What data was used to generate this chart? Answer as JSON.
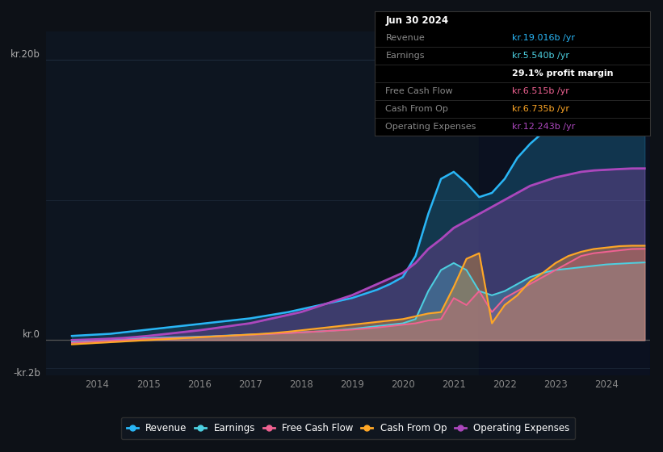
{
  "background_color": "#0d1117",
  "plot_bg_color": "#0d1520",
  "ylim": [
    -2.5,
    22.0
  ],
  "xlim": [
    2013.0,
    2024.85
  ],
  "x_ticks": [
    2014,
    2015,
    2016,
    2017,
    2018,
    2019,
    2020,
    2021,
    2022,
    2023,
    2024
  ],
  "y_label_top": "kr.20b",
  "y_label_zero": "kr.0",
  "y_label_neg": "-kr.2b",
  "revenue_color": "#29b6f6",
  "earnings_color": "#4dd0e1",
  "fcf_color": "#f06292",
  "cashop_color": "#ffa726",
  "opex_color": "#ab47bc",
  "grid_color": "#1e2a3a",
  "zero_line_color": "#555555",
  "legend_items": [
    {
      "label": "Revenue",
      "color": "#29b6f6"
    },
    {
      "label": "Earnings",
      "color": "#4dd0e1"
    },
    {
      "label": "Free Cash Flow",
      "color": "#f06292"
    },
    {
      "label": "Cash From Op",
      "color": "#ffa726"
    },
    {
      "label": "Operating Expenses",
      "color": "#ab47bc"
    }
  ],
  "tooltip": {
    "date": "Jun 30 2024",
    "revenue_label": "Revenue",
    "revenue_val": "kr.19.016b",
    "earnings_label": "Earnings",
    "earnings_val": "kr.5.540b",
    "margin_val": "29.1% profit margin",
    "fcf_label": "Free Cash Flow",
    "fcf_val": "kr.6.515b",
    "cashop_label": "Cash From Op",
    "cashop_val": "kr.6.735b",
    "opex_label": "Operating Expenses",
    "opex_val": "kr.12.243b"
  },
  "t": [
    2013.5,
    2013.75,
    2014.0,
    2014.25,
    2014.5,
    2014.75,
    2015.0,
    2015.25,
    2015.5,
    2015.75,
    2016.0,
    2016.25,
    2016.5,
    2016.75,
    2017.0,
    2017.25,
    2017.5,
    2017.75,
    2018.0,
    2018.25,
    2018.5,
    2018.75,
    2019.0,
    2019.25,
    2019.5,
    2019.75,
    2020.0,
    2020.25,
    2020.5,
    2020.75,
    2021.0,
    2021.25,
    2021.5,
    2021.75,
    2022.0,
    2022.25,
    2022.5,
    2022.75,
    2023.0,
    2023.25,
    2023.5,
    2023.75,
    2024.0,
    2024.25,
    2024.5,
    2024.75
  ],
  "revenue": [
    0.3,
    0.35,
    0.4,
    0.45,
    0.55,
    0.65,
    0.75,
    0.85,
    0.95,
    1.05,
    1.15,
    1.25,
    1.35,
    1.45,
    1.55,
    1.7,
    1.85,
    2.0,
    2.2,
    2.4,
    2.6,
    2.8,
    3.0,
    3.3,
    3.6,
    4.0,
    4.5,
    6.0,
    9.0,
    11.5,
    12.0,
    11.2,
    10.2,
    10.5,
    11.5,
    13.0,
    14.0,
    14.8,
    15.5,
    16.0,
    16.5,
    17.0,
    17.5,
    18.2,
    18.8,
    19.016
  ],
  "earnings": [
    -0.1,
    -0.05,
    0.0,
    0.05,
    0.1,
    0.12,
    0.15,
    0.18,
    0.2,
    0.22,
    0.25,
    0.28,
    0.32,
    0.36,
    0.4,
    0.44,
    0.48,
    0.52,
    0.56,
    0.6,
    0.65,
    0.72,
    0.8,
    0.9,
    1.0,
    1.1,
    1.2,
    1.5,
    3.5,
    5.0,
    5.5,
    5.0,
    3.5,
    3.2,
    3.5,
    4.0,
    4.5,
    4.8,
    5.0,
    5.1,
    5.2,
    5.3,
    5.4,
    5.45,
    5.5,
    5.54
  ],
  "fcf": [
    -0.2,
    -0.15,
    -0.1,
    -0.05,
    0.0,
    0.05,
    0.1,
    0.12,
    0.15,
    0.18,
    0.22,
    0.26,
    0.3,
    0.34,
    0.38,
    0.42,
    0.46,
    0.5,
    0.55,
    0.6,
    0.65,
    0.7,
    0.75,
    0.82,
    0.9,
    1.0,
    1.1,
    1.2,
    1.4,
    1.5,
    3.0,
    2.5,
    3.5,
    2.0,
    3.0,
    3.5,
    4.0,
    4.5,
    5.0,
    5.5,
    6.0,
    6.2,
    6.3,
    6.4,
    6.5,
    6.515
  ],
  "cashop": [
    -0.3,
    -0.25,
    -0.2,
    -0.15,
    -0.1,
    -0.05,
    0.0,
    0.05,
    0.1,
    0.15,
    0.2,
    0.25,
    0.3,
    0.35,
    0.4,
    0.45,
    0.52,
    0.6,
    0.7,
    0.8,
    0.9,
    1.0,
    1.1,
    1.2,
    1.3,
    1.4,
    1.5,
    1.7,
    1.9,
    2.0,
    3.8,
    5.8,
    6.2,
    1.2,
    2.5,
    3.2,
    4.2,
    4.8,
    5.5,
    6.0,
    6.3,
    6.5,
    6.6,
    6.7,
    6.735,
    6.735
  ],
  "opex": [
    0.0,
    0.03,
    0.06,
    0.1,
    0.15,
    0.22,
    0.3,
    0.4,
    0.5,
    0.6,
    0.7,
    0.82,
    0.95,
    1.08,
    1.2,
    1.4,
    1.6,
    1.8,
    2.0,
    2.3,
    2.6,
    2.9,
    3.2,
    3.6,
    4.0,
    4.4,
    4.8,
    5.5,
    6.5,
    7.2,
    8.0,
    8.5,
    9.0,
    9.5,
    10.0,
    10.5,
    11.0,
    11.3,
    11.6,
    11.8,
    12.0,
    12.1,
    12.15,
    12.2,
    12.24,
    12.243
  ]
}
